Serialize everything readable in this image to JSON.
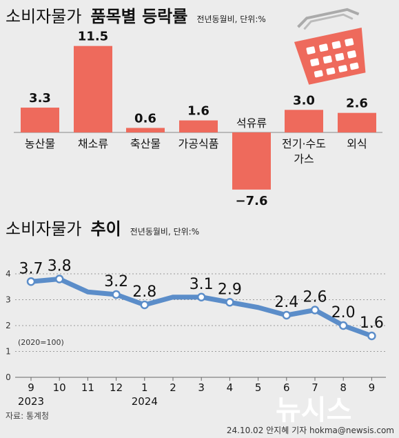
{
  "bar_title_regular": "소비자물가",
  "bar_title_bold": "품목별 등락률",
  "bar_unit": "전년동월비, 단위:%",
  "line_title_regular": "소비자물가",
  "line_title_bold": "추이",
  "line_unit": "전년동월비, 단위:%",
  "base_note": "(2020=100)",
  "source": "자료: 통계청",
  "credit": "24.10.02 안지혜 기자 hokma@newsis.com",
  "watermark": "뉴시스",
  "colors": {
    "bar": "#ee6a5c",
    "line": "#5b8dc9",
    "background": "#ececec",
    "basket": "#ee6a5c"
  },
  "icons": [
    "shopping-basket-icon"
  ],
  "chart_data": [
    {
      "type": "bar",
      "categories": [
        "농산물",
        "채소류",
        "축산물",
        "가공식품",
        "석유류",
        "전기·수도 가스",
        "외식"
      ],
      "category_lines": [
        [
          "농산물"
        ],
        [
          "채소류"
        ],
        [
          "축산물"
        ],
        [
          "가공식품"
        ],
        [
          "석유류"
        ],
        [
          "전기·수도",
          "가스"
        ],
        [
          "외식"
        ]
      ],
      "values": [
        3.3,
        11.5,
        0.6,
        1.6,
        -7.6,
        3.0,
        2.6
      ],
      "value_labels": [
        "3.3",
        "11.5",
        "0.6",
        "1.6",
        "−7.6",
        "3.0",
        "2.6"
      ],
      "ylim": [
        -7.6,
        11.5
      ]
    },
    {
      "type": "line",
      "x": [
        "9",
        "10",
        "11",
        "12",
        "1",
        "2",
        "3",
        "4",
        "5",
        "6",
        "7",
        "8",
        "9"
      ],
      "years": [
        {
          "label": "2023",
          "at": 0
        },
        {
          "label": "2024",
          "at": 4
        }
      ],
      "values": [
        3.7,
        3.8,
        3.3,
        3.2,
        2.8,
        3.1,
        3.1,
        2.9,
        2.7,
        2.4,
        2.6,
        2.0,
        1.6
      ],
      "labels": {
        "0": "3.7",
        "1": "3.8",
        "3": "3.2",
        "4": "2.8",
        "6": "3.1",
        "7": "2.9",
        "9": "2.4",
        "10": "2.6",
        "11": "2.0",
        "12": "1.6"
      },
      "markers": [
        0,
        1,
        3,
        4,
        6,
        7,
        9,
        10,
        11,
        12
      ],
      "ylim": [
        0,
        4
      ],
      "yticks": [
        0,
        1,
        2,
        3,
        4
      ],
      "grid": true
    }
  ]
}
